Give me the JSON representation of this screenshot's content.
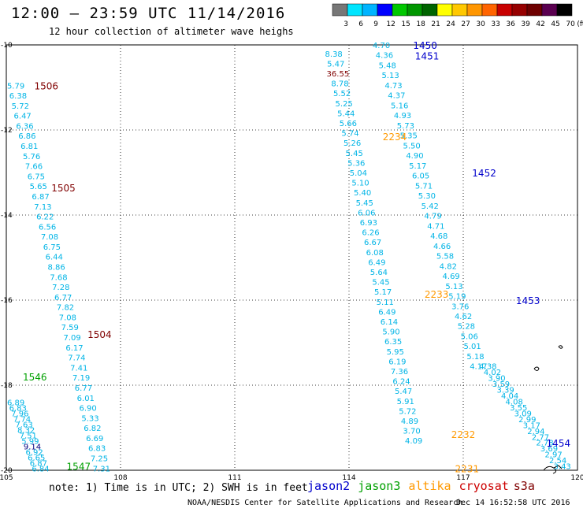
{
  "header": {
    "title": "12:00 – 23:59 UTC 11/14/2016",
    "subtitle": "12 hour collection of altimeter wave heighs"
  },
  "colorbar": {
    "labels": [
      "3",
      "6",
      "9",
      "12",
      "15",
      "18",
      "21",
      "24",
      "27",
      "30",
      "33",
      "36",
      "39",
      "42",
      "45",
      "70",
      "(ft)"
    ],
    "colors": [
      "#777777",
      "#00e5ff",
      "#00b4ff",
      "#0000ff",
      "#00c800",
      "#009600",
      "#006400",
      "#ffff00",
      "#ffc800",
      "#ff9600",
      "#ff6400",
      "#c80000",
      "#960000",
      "#6e0000",
      "#5a0050",
      "#000000"
    ]
  },
  "footer": {
    "note": "note: 1) Time is in UTC; 2) SWH is in feet",
    "credit": "NOAA/NESDIS Center for Satellite Applications and Research",
    "stamp": "Dec 14 16:52:58 UTC 2016"
  },
  "satellites": [
    {
      "name": "jason2",
      "color": "#0000cc"
    },
    {
      "name": "jason3",
      "color": "#00a000"
    },
    {
      "name": "altika",
      "color": "#ff9900"
    },
    {
      "name": "cryosat",
      "color": "#cc0000"
    },
    {
      "name": "s3a",
      "color": "#800000"
    }
  ],
  "chart_data": {
    "type": "scatter",
    "xlim": [
      105,
      120
    ],
    "ylim": [
      -20,
      -10
    ],
    "x_ticks": [
      "105",
      "108",
      "111",
      "114",
      "117",
      "120"
    ],
    "y_ticks": [
      "-10",
      "-12",
      "-14",
      "-16",
      "-18",
      "-20"
    ],
    "grid": true,
    "value_color": "#00b4e6",
    "tracks": [
      {
        "x0": 105.25,
        "y0": -10.95,
        "x1": 107.5,
        "y1": -19.95,
        "values": [
          "5.79",
          "6.38",
          "5.72",
          "6.47",
          "6.36",
          "6.86",
          "6.81",
          "5.76",
          "7.66",
          "6.75",
          "5.65",
          "6.87",
          "7.13",
          "6.22",
          "6.56",
          "7.08",
          "6.75",
          "6.44",
          "8.86",
          "7.68",
          "7.28",
          "6.77",
          "7.82",
          "7.08",
          "7.59",
          "7.09",
          "6.17",
          "7.74",
          "7.41",
          "7.19",
          "6.77",
          "6.01",
          "6.90",
          "5.33",
          "6.82",
          "6.69",
          "6.83",
          "7.25",
          "7.31"
        ]
      },
      {
        "x0": 113.6,
        "y0": -10.2,
        "x1": 115.7,
        "y1": -19.3,
        "values": [
          "8.38",
          "5.47",
          "36.55",
          "8.78",
          "5.52",
          "5.25",
          "5.44",
          "5.66",
          "5.74",
          "5.26",
          "5.45",
          "5.36",
          "5.04",
          "5.10",
          "5.40",
          "5.45",
          "6.06",
          "6.93",
          "6.26",
          "6.67",
          "6.08",
          "6.49",
          "5.64",
          "5.45",
          "5.17",
          "5.11",
          "6.49",
          "6.14",
          "5.90",
          "6.35",
          "5.95",
          "6.19",
          "7.36",
          "6.24",
          "5.47",
          "5.91",
          "5.72",
          "4.89",
          "3.70",
          "4.09"
        ]
      },
      {
        "x0": 114.85,
        "y0": -10.0,
        "x1": 117.4,
        "y1": -17.55,
        "values": [
          "4.70",
          "4.36",
          "5.48",
          "5.13",
          "4.73",
          "4.37",
          "5.16",
          "4.93",
          "5.73",
          "5.35",
          "5.50",
          "4.90",
          "5.17",
          "6.05",
          "5.71",
          "5.30",
          "5.42",
          "4.79",
          "4.71",
          "4.68",
          "4.66",
          "5.58",
          "4.82",
          "4.69",
          "5.13",
          "5.19",
          "3.76",
          "4.62",
          "5.28",
          "5.06",
          "5.01",
          "5.18",
          "4.17"
        ]
      },
      {
        "x0": 117.65,
        "y0": -17.55,
        "x1": 119.6,
        "y1": -19.9,
        "values": [
          "4.38",
          "4.02",
          "3.90",
          "3.59",
          "3.39",
          "4.04",
          "4.08",
          "3.55",
          "3.09",
          "2.99",
          "3.17",
          "2.94",
          "2.77",
          "2.78",
          "3.69",
          "2.97",
          "2.54",
          "3.43"
        ]
      },
      {
        "x0": 105.25,
        "y0": -18.4,
        "x1": 105.9,
        "y1": -19.95,
        "values": [
          "6.89",
          "6.83",
          "7.96",
          "7.74",
          "7.63",
          "8.32",
          "7.51",
          "5.99",
          "9.14",
          "6.92",
          "6.65",
          "6.87",
          "6.84"
        ]
      }
    ],
    "pass_labels": [
      {
        "text": "1506",
        "x": 106.05,
        "y": -10.95,
        "color": "#800000"
      },
      {
        "text": "1505",
        "x": 106.5,
        "y": -13.35,
        "color": "#800000"
      },
      {
        "text": "1504",
        "x": 107.45,
        "y": -16.8,
        "color": "#800000"
      },
      {
        "text": "1546",
        "x": 105.75,
        "y": -17.8,
        "color": "#00a000"
      },
      {
        "text": "1547",
        "x": 106.9,
        "y": -19.9,
        "color": "#00a000"
      },
      {
        "text": "1450",
        "x": 116.0,
        "y": -10.0,
        "color": "#0000cc"
      },
      {
        "text": "1451",
        "x": 116.05,
        "y": -10.25,
        "color": "#0000cc"
      },
      {
        "text": "1452",
        "x": 117.55,
        "y": -13.0,
        "color": "#0000cc"
      },
      {
        "text": "1453",
        "x": 118.7,
        "y": -16.0,
        "color": "#0000cc"
      },
      {
        "text": "1454",
        "x": 119.5,
        "y": -19.35,
        "color": "#0000cc"
      },
      {
        "text": "2234",
        "x": 115.2,
        "y": -12.15,
        "color": "#ff9900"
      },
      {
        "text": "2233",
        "x": 116.3,
        "y": -15.85,
        "color": "#ff9900"
      },
      {
        "text": "2232",
        "x": 117.0,
        "y": -19.15,
        "color": "#ff9900"
      },
      {
        "text": "2231",
        "x": 117.1,
        "y": -19.95,
        "color": "#ff9900"
      }
    ],
    "coast_labels": [
      {
        "text": "36.55",
        "color": "#800000"
      },
      {
        "text": "9.14",
        "color": "#000080"
      }
    ]
  }
}
